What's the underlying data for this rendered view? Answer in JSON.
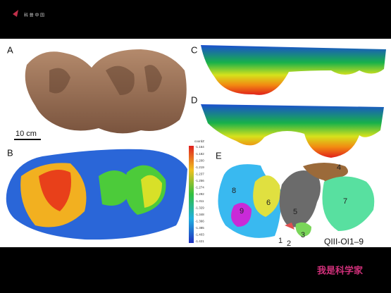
{
  "header": {
    "logo": "科 普 中 国"
  },
  "figure": {
    "panels": [
      "A",
      "B",
      "C",
      "D",
      "E"
    ],
    "scale_bar": "10 cm",
    "colorbar": {
      "title": "coordZ",
      "labels": [
        "-1.164",
        "-1.182",
        "-1.200",
        "-1.219",
        "-1.237",
        "-1.256",
        "-1.274",
        "-1.292",
        "-1.311",
        "-1.329",
        "-1.348",
        "-1.366",
        "-1.385",
        "-1.403",
        "-1.421"
      ]
    },
    "track_numbers": [
      "1",
      "2",
      "3",
      "4",
      "5",
      "6",
      "7",
      "8",
      "9"
    ],
    "specimen": "QIII-OI1–9"
  },
  "footer": {
    "logo": "我是科学家"
  }
}
